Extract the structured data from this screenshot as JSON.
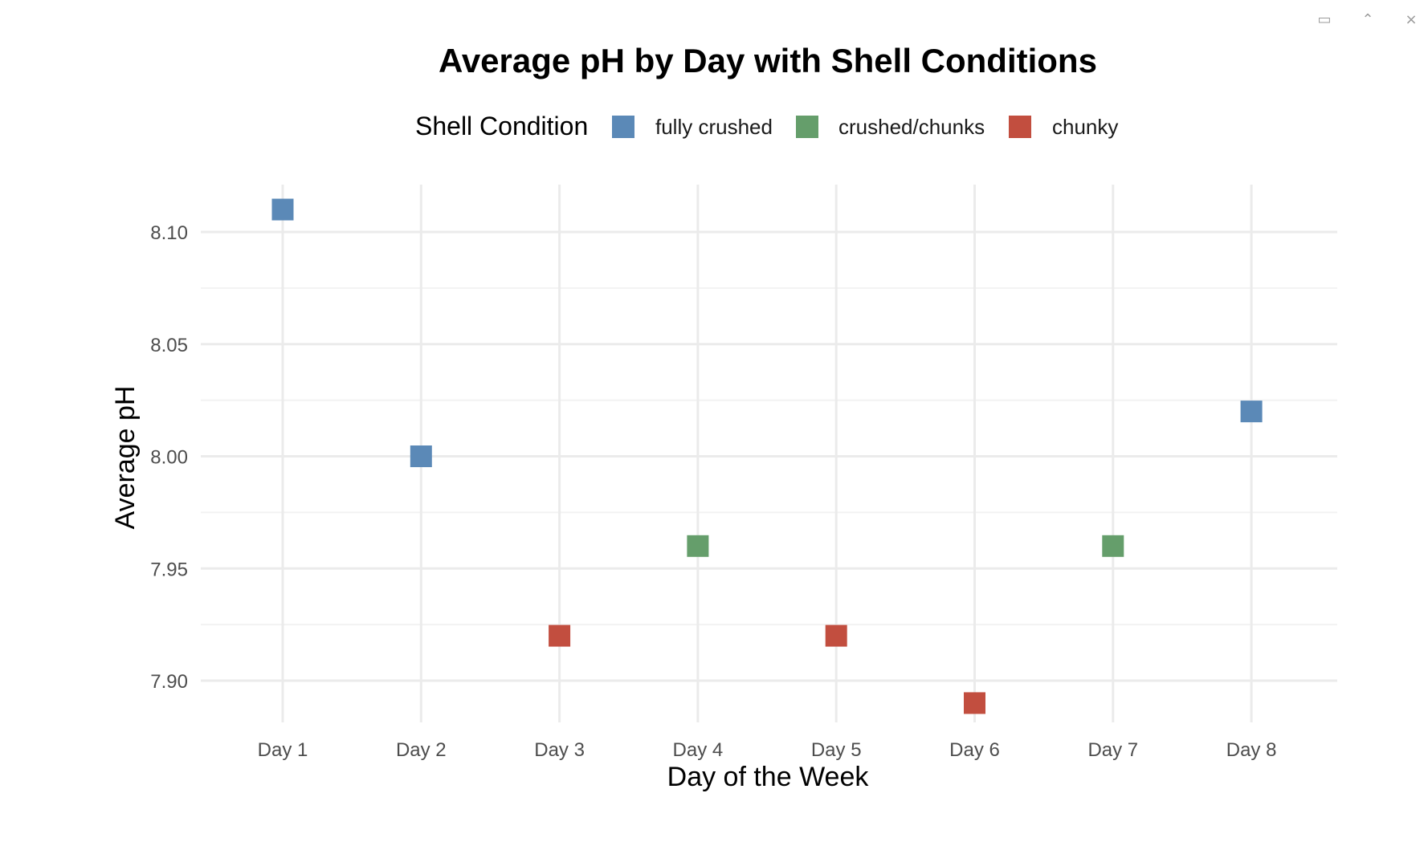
{
  "window_controls": [
    {
      "name": "restore-icon",
      "glyph": "▭"
    },
    {
      "name": "minimize-icon",
      "glyph": "⌃"
    },
    {
      "name": "close-icon",
      "glyph": "×"
    }
  ],
  "chart_data": {
    "type": "scatter",
    "title": "Average pH by Day with Shell Conditions",
    "xlabel": "Day of the Week",
    "ylabel": "Average pH",
    "categories": [
      "Day 1",
      "Day 2",
      "Day 3",
      "Day 4",
      "Day 5",
      "Day 6",
      "Day 7",
      "Day 8"
    ],
    "ylim": [
      7.88,
      8.12
    ],
    "y_ticks": [
      7.9,
      7.95,
      8.0,
      8.05,
      8.1
    ],
    "y_tick_labels": [
      "7.90",
      "7.95",
      "8.00",
      "8.05",
      "8.10"
    ],
    "grid": true,
    "legend": {
      "title": "Shell Condition",
      "position": "top",
      "entries": [
        {
          "name": "fully crushed",
          "color": "#5b89b7"
        },
        {
          "name": "crushed/chunks",
          "color": "#659e6b"
        },
        {
          "name": "chunky",
          "color": "#c24e3f"
        }
      ]
    },
    "points": [
      {
        "x": "Day 1",
        "y": 8.11,
        "condition": "fully crushed"
      },
      {
        "x": "Day 2",
        "y": 8.0,
        "condition": "fully crushed"
      },
      {
        "x": "Day 3",
        "y": 7.92,
        "condition": "chunky"
      },
      {
        "x": "Day 4",
        "y": 7.96,
        "condition": "crushed/chunks"
      },
      {
        "x": "Day 5",
        "y": 7.92,
        "condition": "chunky"
      },
      {
        "x": "Day 6",
        "y": 7.89,
        "condition": "chunky"
      },
      {
        "x": "Day 7",
        "y": 7.96,
        "condition": "crushed/chunks"
      },
      {
        "x": "Day 8",
        "y": 8.02,
        "condition": "fully crushed"
      }
    ]
  }
}
